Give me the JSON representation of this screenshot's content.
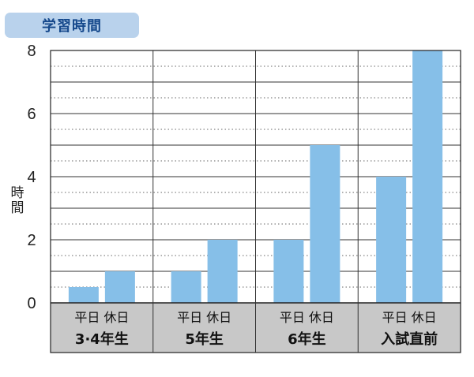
{
  "title": "学習時間",
  "chart_data": {
    "type": "bar",
    "title": "学習時間",
    "ylabel": "時間",
    "xlabel": "",
    "ylim": [
      0,
      8
    ],
    "yticks": [
      0,
      2,
      4,
      6,
      8
    ],
    "grid": "dotted minor lines every 0.5, solid lines every 1",
    "bar_color": "#86bfe8",
    "label_band_color": "#c8c8c8",
    "groups": [
      {
        "label": "3·4年生",
        "sub_labels": [
          "平日",
          "休日"
        ],
        "values": [
          0.5,
          1
        ]
      },
      {
        "label": "5年生",
        "sub_labels": [
          "平日",
          "休日"
        ],
        "values": [
          1,
          2
        ]
      },
      {
        "label": "6年生",
        "sub_labels": [
          "平日",
          "休日"
        ],
        "values": [
          2,
          5
        ]
      },
      {
        "label": "入試直前",
        "sub_labels": [
          "平日",
          "休日"
        ],
        "values": [
          4,
          8
        ]
      }
    ]
  }
}
